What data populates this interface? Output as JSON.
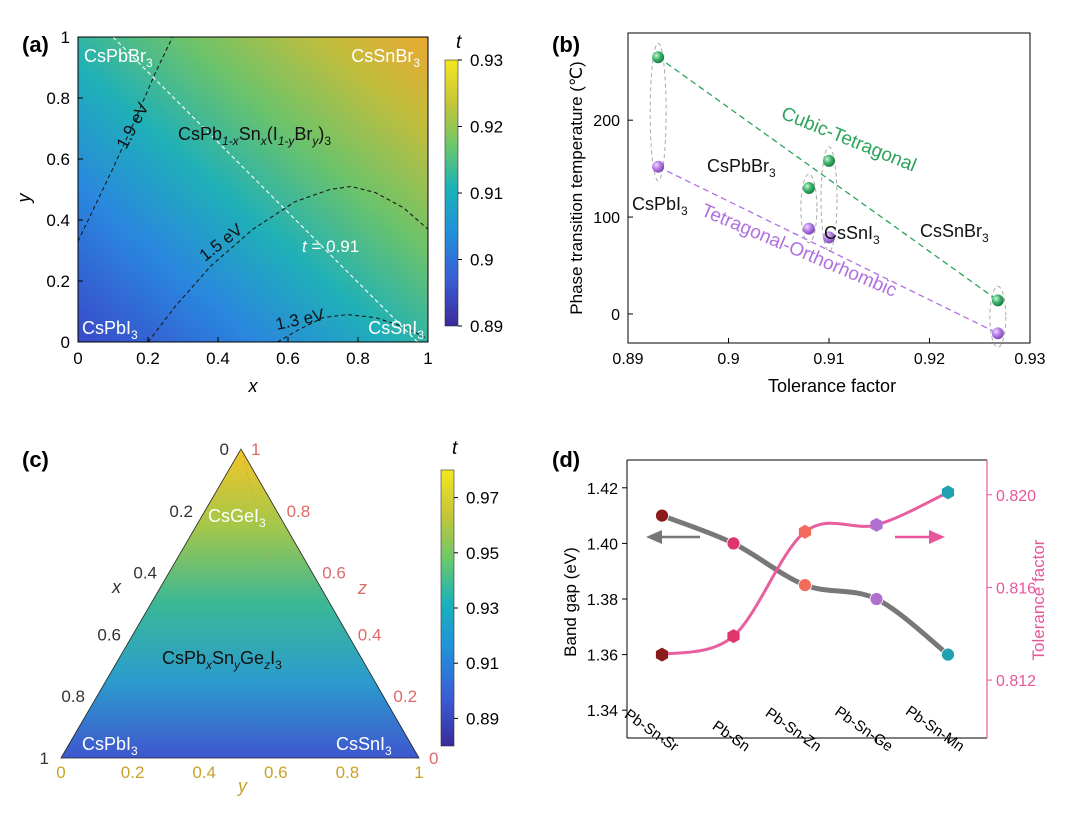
{
  "chart_data": [
    {
      "panel": "(a)",
      "type": "heatmap",
      "title": "CsPb1-xSnx(I1-yBry)3",
      "formula": {
        "a": "CsPb",
        "b": "1-x",
        "c": "Sn",
        "d": "x",
        "e": "(I",
        "f": "1-y",
        "g": "Br",
        "h": "y",
        "i": ")",
        "j": "3"
      },
      "xlabel": "x",
      "ylabel": "y",
      "xlim": [
        0,
        1
      ],
      "ylim": [
        0,
        1
      ],
      "xticks": [
        "0",
        "0.2",
        "0.4",
        "0.6",
        "0.8",
        "1"
      ],
      "yticks": [
        "0",
        "0.2",
        "0.4",
        "0.6",
        "0.8",
        "1"
      ],
      "colorbar": {
        "label": "t",
        "range": [
          0.89,
          0.93
        ],
        "ticks": [
          "0.89",
          "0.9",
          "0.91",
          "0.92",
          "0.93"
        ]
      },
      "corners": {
        "top_left": {
          "base": "CsPbBr",
          "sub": "3"
        },
        "top_right": {
          "base": "CsSnBr",
          "sub": "3"
        },
        "bottom_left": {
          "base": "CsPbI",
          "sub": "3"
        },
        "bottom_right": {
          "base": "CsSnI",
          "sub": "3"
        }
      },
      "contours": [
        {
          "label": "1.9 eV",
          "points": [
            [
              0,
              0.33
            ],
            [
              0.05,
              0.45
            ],
            [
              0.1,
              0.57
            ],
            [
              0.16,
              0.72
            ],
            [
              0.22,
              0.88
            ],
            [
              0.27,
              1.0
            ]
          ]
        },
        {
          "label": "1.5 eV",
          "points": [
            [
              0.2,
              0
            ],
            [
              0.28,
              0.12
            ],
            [
              0.38,
              0.25
            ],
            [
              0.5,
              0.37
            ],
            [
              0.62,
              0.46
            ],
            [
              0.72,
              0.5
            ],
            [
              0.78,
              0.51
            ],
            [
              0.85,
              0.49
            ],
            [
              0.93,
              0.44
            ],
            [
              1.0,
              0.37
            ]
          ]
        },
        {
          "label": "1.3 eV",
          "points": [
            [
              0.57,
              0
            ],
            [
              0.63,
              0.04
            ],
            [
              0.7,
              0.08
            ],
            [
              0.77,
              0.09
            ],
            [
              0.85,
              0.08
            ],
            [
              0.93,
              0.05
            ],
            [
              1.0,
              0.01
            ]
          ]
        }
      ],
      "iso_t": {
        "label_prefix": "t",
        "label_value": " = 0.91",
        "points": [
          [
            0.1,
            1.0
          ],
          [
            0.97,
            0
          ]
        ]
      }
    },
    {
      "panel": "(b)",
      "type": "scatter",
      "xlabel": "Tolerance factor",
      "ylabel": "Phase transition temperature (℃)",
      "xlim": [
        0.89,
        0.93
      ],
      "ylim": [
        -30,
        290
      ],
      "xticks": [
        0.89,
        0.9,
        0.91,
        0.92,
        0.93
      ],
      "xtick_labels": [
        "0.89",
        "0.9",
        "0.91",
        "0.92",
        "0.93"
      ],
      "yticks": [
        0,
        100,
        200
      ],
      "ytick_labels": [
        "0",
        "100",
        "200"
      ],
      "series": [
        {
          "name": "Cubic-Tetragonal",
          "color": "#2ca35a",
          "points": [
            [
              0.893,
              265
            ],
            [
              0.908,
              130
            ],
            [
              0.91,
              158
            ],
            [
              0.9268,
              14
            ]
          ],
          "trend": [
            [
              0.893,
              265
            ],
            [
              0.9268,
              14
            ]
          ]
        },
        {
          "name": "Tetragonal-Orthorhombic",
          "color": "#b070e0",
          "points": [
            [
              0.893,
              152
            ],
            [
              0.908,
              88
            ],
            [
              0.91,
              79
            ],
            [
              0.9268,
              -20
            ]
          ],
          "trend": [
            [
              0.893,
              152
            ],
            [
              0.9268,
              -20
            ]
          ]
        }
      ],
      "compounds": [
        {
          "base": "CsPbI",
          "sub": "3"
        },
        {
          "base": "CsPbBr",
          "sub": "3"
        },
        {
          "base": "CsSnI",
          "sub": "3"
        },
        {
          "base": "CsSnBr",
          "sub": "3"
        }
      ]
    },
    {
      "panel": "(c)",
      "type": "heatmap",
      "subtype": "ternary",
      "title": "CsPbxSnyGezI3",
      "formula": {
        "a": "CsPb",
        "b": "x",
        "c": "Sn",
        "d": "y",
        "e": "Ge",
        "f": "z",
        "g": "I",
        "h": "3"
      },
      "axes": {
        "x": "x",
        "y": "y",
        "z": "z"
      },
      "x_ticks": [
        "0",
        "0.2",
        "0.4",
        "0.6",
        "0.8",
        "1"
      ],
      "y_ticks": [
        "0",
        "0.2",
        "0.4",
        "0.6",
        "0.8",
        "1"
      ],
      "z_ticks": [
        "0",
        "0.2",
        "0.4",
        "0.6",
        "0.8",
        "1"
      ],
      "colorbar": {
        "label": "t",
        "range": [
          0.88,
          0.98
        ],
        "ticks": [
          "0.89",
          "0.91",
          "0.93",
          "0.95",
          "0.97"
        ]
      },
      "vertices": {
        "top": {
          "base": "CsGeI",
          "sub": "3"
        },
        "left": {
          "base": "CsPbI",
          "sub": "3"
        },
        "right": {
          "base": "CsSnI",
          "sub": "3"
        }
      }
    },
    {
      "panel": "(d)",
      "type": "line",
      "categories": [
        "Pb-Sn-Sr",
        "Pb-Sn",
        "Pb-Sn-Zn",
        "Pb-Sn-Ge",
        "Pb-Sn-Mn"
      ],
      "ylabel_left": "Band gap (eV)",
      "ylabel_right": "Tolerance factor",
      "ylim_left": [
        1.33,
        1.43
      ],
      "ylim_right": [
        0.8095,
        0.8215
      ],
      "yticks_left": [
        1.34,
        1.36,
        1.38,
        1.4,
        1.42
      ],
      "yticks_left_labels": [
        "1.34",
        "1.36",
        "1.38",
        "1.40",
        "1.42"
      ],
      "yticks_right": [
        0.812,
        0.816,
        0.82
      ],
      "yticks_right_labels": [
        "0.812",
        "0.816",
        "0.820"
      ],
      "series": [
        {
          "name": "Band gap",
          "axis": "left",
          "color": "#606060",
          "values": [
            1.41,
            1.4,
            1.385,
            1.38,
            1.36
          ]
        },
        {
          "name": "Tolerance factor",
          "axis": "right",
          "color": "#e8559a",
          "values": [
            0.8131,
            0.8139,
            0.8184,
            0.8187,
            0.8201
          ]
        }
      ],
      "marker_colors": [
        "#8b1a1a",
        "#e0356b",
        "#f26b5b",
        "#b070d0",
        "#20a0b0"
      ]
    }
  ]
}
